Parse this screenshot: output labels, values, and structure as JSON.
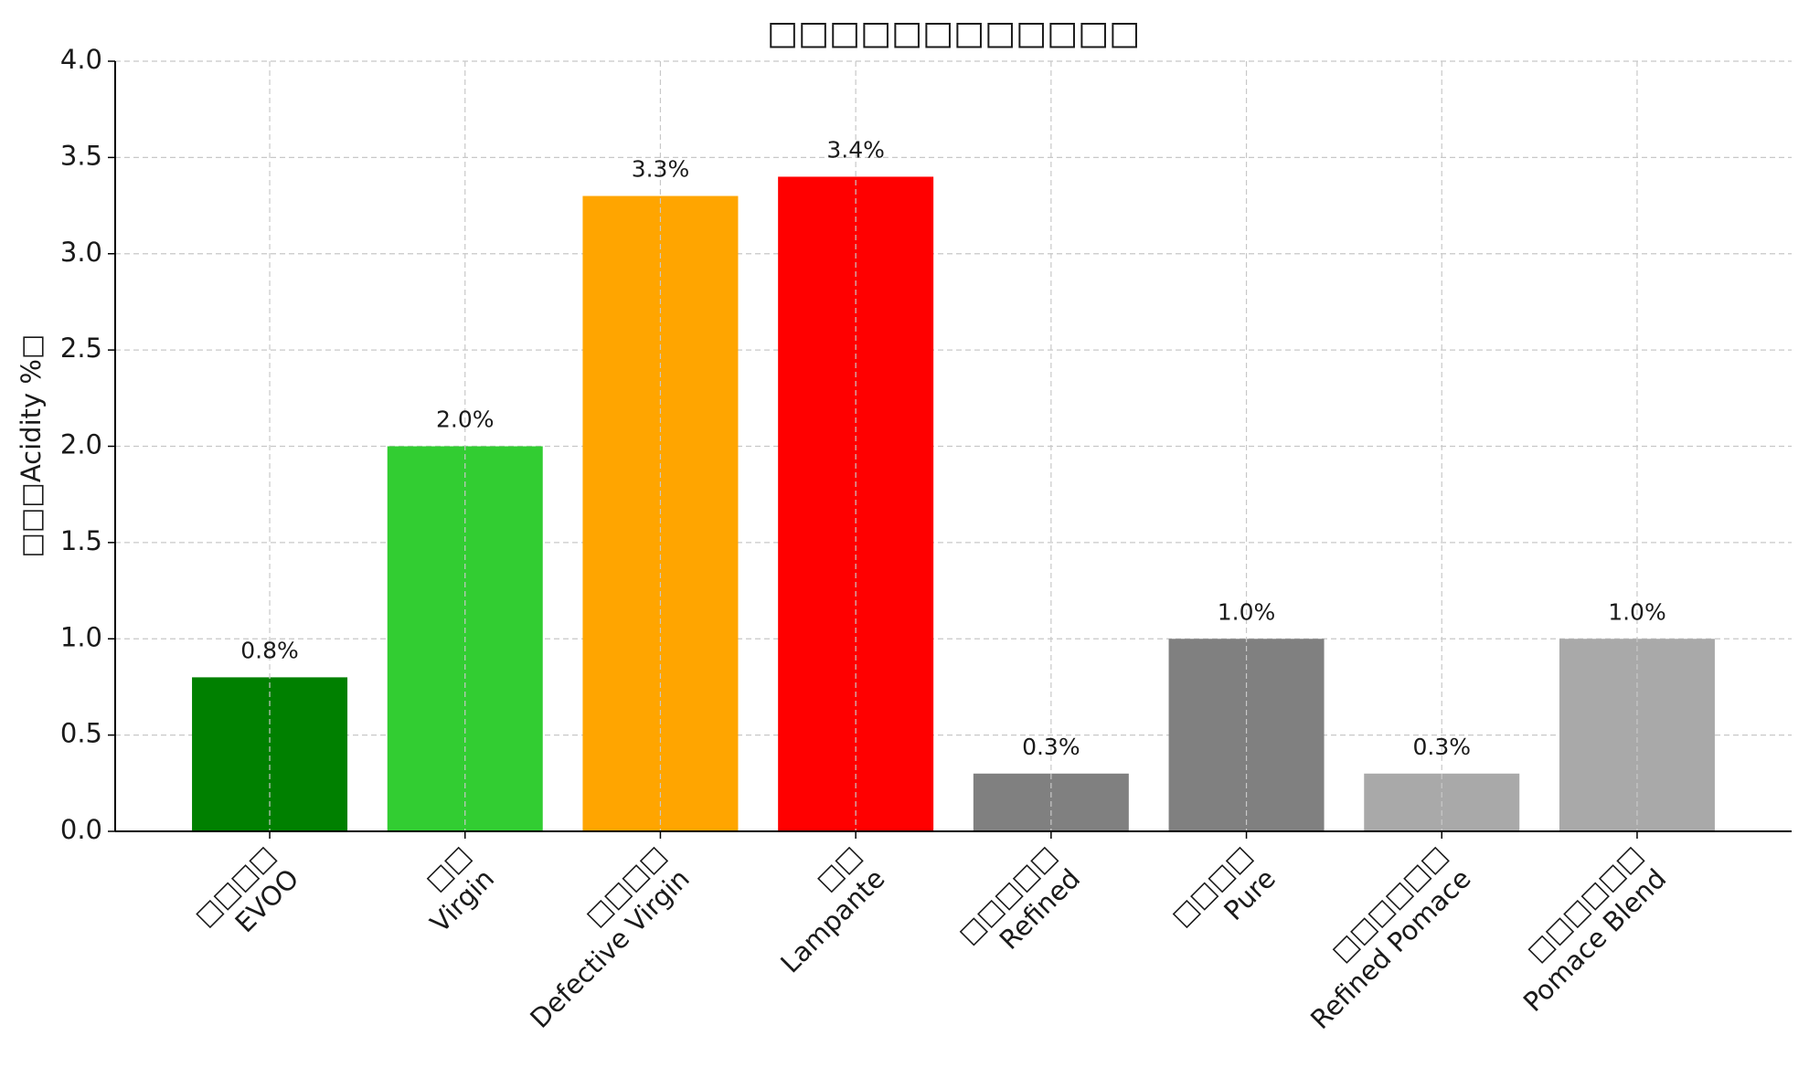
{
  "chart_data": {
    "type": "bar",
    "title": "□□□□□□□□□□□□",
    "y_label": "□□□Acidity %□",
    "categories": [
      "□□□□\nEVOO",
      "□□\nVirgin",
      "□□□□\nDefective Virgin",
      "□□\nLampante",
      "□□□□□\nRefined",
      "□□□□\nPure",
      "□□□□□□\nRefined Pomace",
      "□□□□□□\nPomace Blend"
    ],
    "values": [
      0.8,
      2.0,
      3.3,
      3.4,
      0.3,
      1.0,
      0.3,
      1.0
    ],
    "value_labels": [
      "0.8%",
      "2.0%",
      "3.3%",
      "3.4%",
      "0.3%",
      "1.0%",
      "0.3%",
      "1.0%"
    ],
    "colors": [
      "#008000",
      "#32cd32",
      "#ffa500",
      "#ff0000",
      "#808080",
      "#808080",
      "#a9a9a9",
      "#a9a9a9"
    ],
    "ylim": [
      0,
      4
    ],
    "yticks": [
      {
        "value": 0,
        "label": "0.0"
      },
      0.5,
      {
        "value": 1,
        "label": "1.0"
      },
      1.5,
      {
        "value": 2,
        "label": "2.0"
      },
      2.5,
      {
        "value": 3,
        "label": "3.0"
      },
      3.5,
      {
        "value": 4,
        "label": "4.0"
      }
    ],
    "grid": true
  }
}
